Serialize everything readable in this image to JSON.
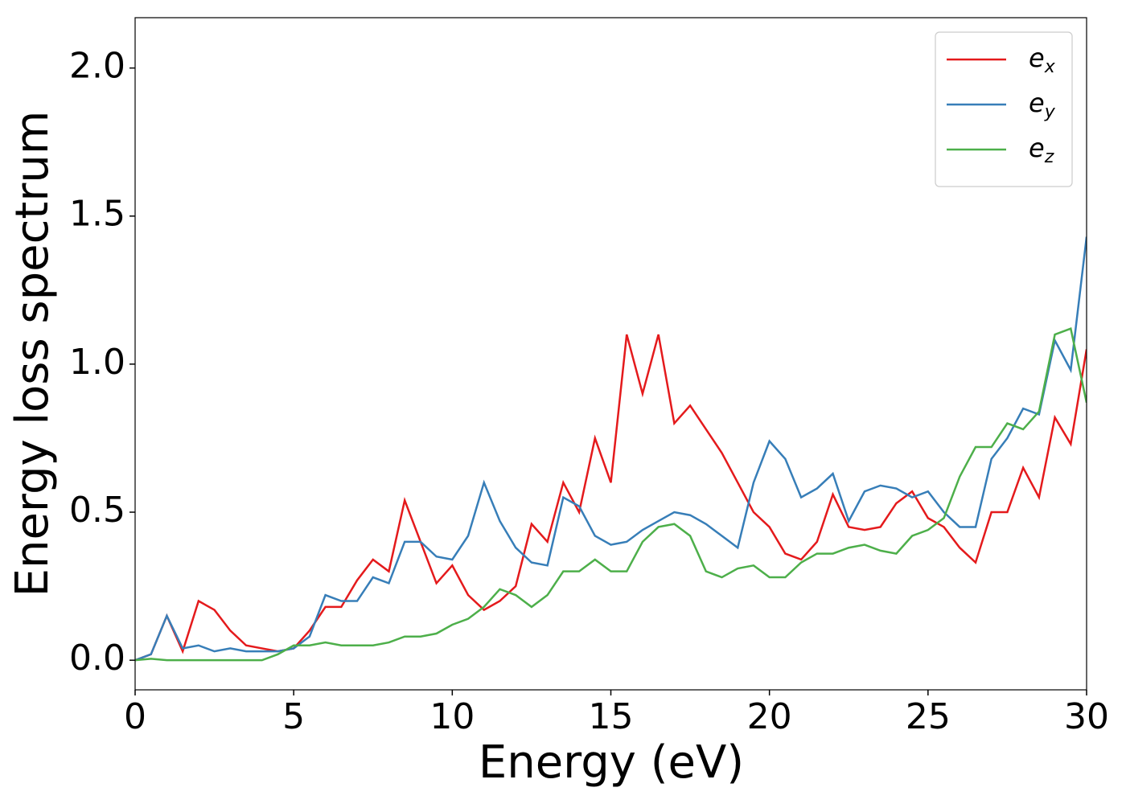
{
  "chart_data": {
    "type": "line",
    "xlabel": "Energy (eV)",
    "ylabel": "Energy loss spectrum",
    "x": [
      0,
      0.5,
      1,
      1.5,
      2,
      2.5,
      3,
      3.5,
      4,
      4.5,
      5,
      5.5,
      6,
      6.5,
      7,
      7.5,
      8,
      8.5,
      9,
      9.5,
      10,
      10.5,
      11,
      11.5,
      12,
      12.5,
      13,
      13.5,
      14,
      14.5,
      15,
      15.5,
      16,
      16.5,
      17,
      17.5,
      18,
      18.5,
      19,
      19.5,
      20,
      20.5,
      21,
      21.5,
      22,
      22.5,
      23,
      23.5,
      24,
      24.5,
      25,
      25.5,
      26,
      26.5,
      27,
      27.5,
      28,
      28.5,
      29,
      29.5,
      30
    ],
    "series": [
      {
        "name": "ex",
        "color": "#e41a1c",
        "values": [
          0,
          0.02,
          0.15,
          0.03,
          0.2,
          0.17,
          0.1,
          0.05,
          0.04,
          0.03,
          0.04,
          0.1,
          0.18,
          0.18,
          0.27,
          0.34,
          0.3,
          0.54,
          0.4,
          0.26,
          0.32,
          0.22,
          0.17,
          0.2,
          0.25,
          0.46,
          0.4,
          0.6,
          0.5,
          0.75,
          0.6,
          1.1,
          0.9,
          1.1,
          0.8,
          0.86,
          0.78,
          0.7,
          0.6,
          0.5,
          0.45,
          0.36,
          0.34,
          0.4,
          0.56,
          0.45,
          0.44,
          0.45,
          0.53,
          0.57,
          0.48,
          0.45,
          0.38,
          0.33,
          0.5,
          0.5,
          0.65,
          0.55,
          0.82,
          0.73,
          1.05
        ]
      },
      {
        "name": "ey",
        "color": "#377eb8",
        "values": [
          0,
          0.02,
          0.15,
          0.04,
          0.05,
          0.03,
          0.04,
          0.03,
          0.03,
          0.03,
          0.04,
          0.08,
          0.22,
          0.2,
          0.2,
          0.28,
          0.26,
          0.4,
          0.4,
          0.35,
          0.34,
          0.42,
          0.6,
          0.47,
          0.38,
          0.33,
          0.32,
          0.55,
          0.52,
          0.42,
          0.39,
          0.4,
          0.44,
          0.47,
          0.5,
          0.49,
          0.46,
          0.42,
          0.38,
          0.6,
          0.74,
          0.68,
          0.55,
          0.58,
          0.63,
          0.47,
          0.57,
          0.59,
          0.58,
          0.55,
          0.57,
          0.5,
          0.45,
          0.45,
          0.68,
          0.75,
          0.85,
          0.83,
          1.08,
          0.98,
          1.43
        ]
      },
      {
        "name": "ez",
        "color": "#4daf4a",
        "values": [
          0,
          0.005,
          0,
          0,
          0,
          0,
          0,
          0,
          0,
          0.02,
          0.05,
          0.05,
          0.06,
          0.05,
          0.05,
          0.05,
          0.06,
          0.08,
          0.08,
          0.09,
          0.12,
          0.14,
          0.18,
          0.24,
          0.22,
          0.18,
          0.22,
          0.3,
          0.3,
          0.34,
          0.3,
          0.3,
          0.4,
          0.45,
          0.46,
          0.42,
          0.3,
          0.28,
          0.31,
          0.32,
          0.28,
          0.28,
          0.33,
          0.36,
          0.36,
          0.38,
          0.39,
          0.37,
          0.36,
          0.42,
          0.44,
          0.48,
          0.62,
          0.72,
          0.72,
          0.8,
          0.78,
          0.84,
          1.1,
          1.12,
          0.87
        ]
      }
    ],
    "xlim": [
      0,
      30
    ],
    "xticks": [
      0,
      5,
      10,
      15,
      20,
      25,
      30
    ],
    "ylim": [
      -0.1,
      2.17
    ],
    "yticks": [
      {
        "value": 0,
        "label": "0.0"
      },
      0.5,
      {
        "value": 1,
        "label": "1.0"
      },
      1.5,
      {
        "value": 2,
        "label": "2.0"
      }
    ],
    "legend": "upper right"
  }
}
